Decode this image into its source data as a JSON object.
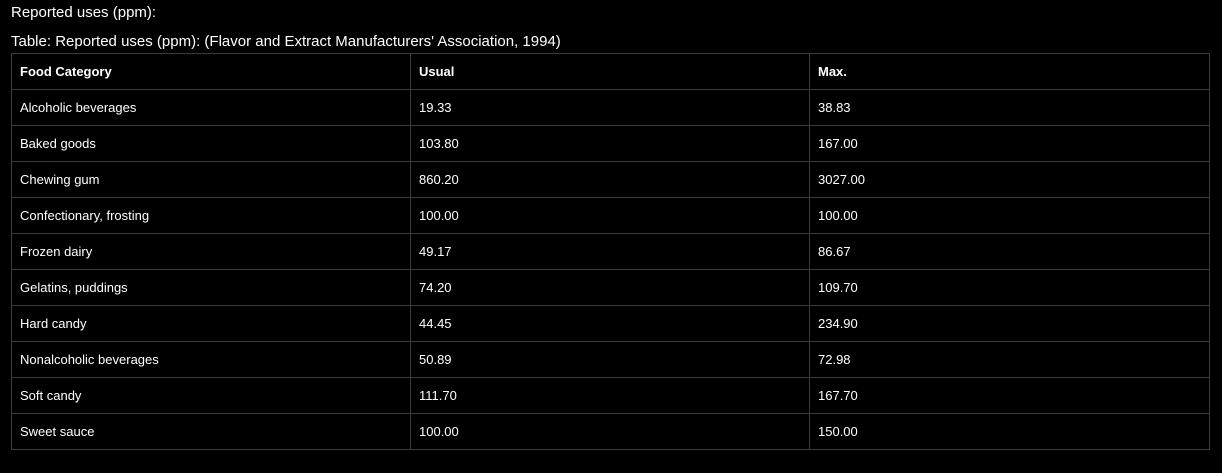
{
  "heading": "Reported uses (ppm):",
  "caption": "Table: Reported uses (ppm): (Flavor and Extract Manufacturers' Association, 1994)",
  "table": {
    "headers": [
      "Food Category",
      "Usual",
      "Max."
    ],
    "rows": [
      [
        "Alcoholic beverages",
        "19.33",
        "38.83"
      ],
      [
        "Baked goods",
        "103.80",
        "167.00"
      ],
      [
        "Chewing gum",
        "860.20",
        "3027.00"
      ],
      [
        "Confectionary, frosting",
        "100.00",
        "100.00"
      ],
      [
        "Frozen dairy",
        "49.17",
        "86.67"
      ],
      [
        "Gelatins, puddings",
        "74.20",
        "109.70"
      ],
      [
        "Hard candy",
        "44.45",
        "234.90"
      ],
      [
        "Nonalcoholic beverages",
        "50.89",
        "72.98"
      ],
      [
        "Soft candy",
        "111.70",
        "167.70"
      ],
      [
        "Sweet sauce",
        "100.00",
        "150.00"
      ]
    ]
  }
}
